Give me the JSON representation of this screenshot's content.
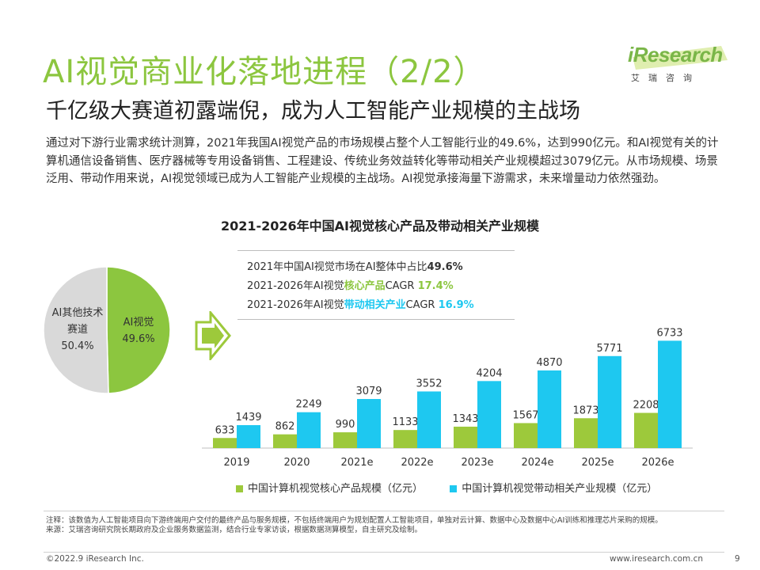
{
  "header": {
    "title": "AI视觉商业化落地进程（2/2）",
    "subtitle": "千亿级大赛道初露端倪，成为人工智能产业规模的主战场"
  },
  "logo": {
    "brand": "iResearch",
    "tagline": "艾瑞咨询"
  },
  "intro": "通过对下游行业需求统计测算，2021年我国AI视觉产品的市场规模占整个人工智能行业的49.6%，达到990亿元。和AI视觉有关的计算机通信设备销售、医疗器械等专用设备销售、工程建设、传统业务效益转化等带动相关产业规模超过3079亿元。从市场规模、场景泛用、带动作用来说，AI视觉领域已成为人工智能产业规模的主战场。AI视觉承接海量下游需求，未来增量动力依然强劲。",
  "kpis": {
    "row1_prefix": "2021年中国AI视觉市场在AI整体中占比",
    "row1_value": "49.6%",
    "row2_prefix": "2021-2026年AI视觉",
    "row2_highlight": "核心产品",
    "row2_mid": "CAGR ",
    "row2_value": "17.4%",
    "row3_prefix": "2021-2026年AI视觉",
    "row3_highlight": "带动相关产业",
    "row3_mid": "CAGR ",
    "row3_value": "16.9%"
  },
  "chart_data": [
    {
      "type": "pie",
      "labels": [
        "AI视觉",
        "AI其他技术赛道"
      ],
      "values": [
        49.6,
        50.4
      ],
      "value_labels": [
        "49.6%",
        "50.4%"
      ],
      "colors": [
        "#8cc63f",
        "#d9d9d9"
      ]
    },
    {
      "type": "bar",
      "title": "2021-2026年中国AI视觉核心产品及带动相关产业规模",
      "categories": [
        "2019",
        "2020",
        "2021e",
        "2022e",
        "2023e",
        "2024e",
        "2025e",
        "2026e"
      ],
      "series": [
        {
          "name": "中国计算机视觉核心产品规模（亿元）",
          "color": "#9dc93b",
          "values": [
            633,
            862,
            990,
            1133,
            1343,
            1567,
            1873,
            2208
          ]
        },
        {
          "name": "中国计算机视觉带动相关产业规模（亿元）",
          "color": "#1ec8f0",
          "values": [
            1439,
            2249,
            3079,
            3552,
            4204,
            4870,
            5771,
            6733
          ]
        }
      ],
      "ylim": [
        0,
        7200
      ],
      "legend_position": "bottom",
      "grid": false
    }
  ],
  "pie_text": {
    "slice1_name": "AI视觉",
    "slice1_value": "49.6%",
    "slice2_name_l1": "AI其他技术",
    "slice2_name_l2": "赛道",
    "slice2_value": "50.4%"
  },
  "notes": {
    "note": "注释：该数值为人工智能项目向下游终端用户交付的最终产品与服务规模，不包括终端用户为规划配置人工智能项目，单独对云计算、数据中心及数据中心AI训练和推理芯片采购的规模。",
    "source": "来源：艾瑞咨询研究院长期政府及企业服务数据监测，结合行业专家访谈，根据数据测算模型，自主研究及绘制。"
  },
  "footer": {
    "copyright": "©2022.9 iResearch Inc.",
    "website": "www.iresearch.com.cn",
    "page": "9"
  }
}
